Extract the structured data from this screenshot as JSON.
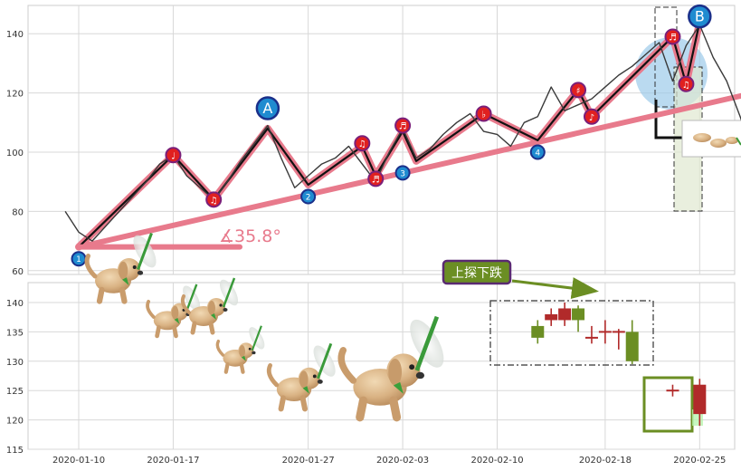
{
  "chart_data": [
    {
      "type": "line",
      "panel": "upper",
      "ylim": [
        57,
        150
      ],
      "yticks": [
        60,
        80,
        100,
        120,
        140
      ],
      "grid": true,
      "series": [
        {
          "role": "price",
          "color": "#3a3a3a",
          "points": [
            [
              "2020-01-09",
              80
            ],
            [
              "2020-01-10",
              73
            ],
            [
              "2020-01-11",
              70
            ],
            [
              "2020-01-12",
              75
            ],
            [
              "2020-01-13",
              80
            ],
            [
              "2020-01-14",
              85
            ],
            [
              "2020-01-15",
              90
            ],
            [
              "2020-01-16",
              96
            ],
            [
              "2020-01-17",
              99
            ],
            [
              "2020-01-18",
              92
            ],
            [
              "2020-01-19",
              88
            ],
            [
              "2020-01-20",
              84
            ],
            [
              "2020-01-21",
              90
            ],
            [
              "2020-01-22",
              97
            ],
            [
              "2020-01-23",
              103
            ],
            [
              "2020-01-24",
              109
            ],
            [
              "2020-01-25",
              98
            ],
            [
              "2020-01-26",
              88
            ],
            [
              "2020-01-27",
              92
            ],
            [
              "2020-01-28",
              96
            ],
            [
              "2020-01-29",
              98
            ],
            [
              "2020-01-30",
              102
            ],
            [
              "2020-01-31",
              96
            ],
            [
              "2020-02-01",
              90
            ],
            [
              "2020-02-02",
              100
            ],
            [
              "2020-02-03",
              108
            ],
            [
              "2020-02-04",
              98
            ],
            [
              "2020-02-05",
              101
            ],
            [
              "2020-02-06",
              106
            ],
            [
              "2020-02-07",
              110
            ],
            [
              "2020-02-08",
              113
            ],
            [
              "2020-02-09",
              107
            ],
            [
              "2020-02-10",
              106
            ],
            [
              "2020-02-11",
              102
            ],
            [
              "2020-02-12",
              110
            ],
            [
              "2020-02-13",
              112
            ],
            [
              "2020-02-14",
              122
            ],
            [
              "2020-02-15",
              114
            ],
            [
              "2020-02-16",
              116
            ],
            [
              "2020-02-17",
              118
            ],
            [
              "2020-02-18",
              122
            ],
            [
              "2020-02-19",
              126
            ],
            [
              "2020-02-20",
              129
            ],
            [
              "2020-02-21",
              133
            ],
            [
              "2020-02-22",
              137
            ],
            [
              "2020-02-23",
              124
            ],
            [
              "2020-02-24",
              136
            ],
            [
              "2020-02-25",
              143
            ],
            [
              "2020-02-26",
              132
            ],
            [
              "2020-02-27",
              124
            ],
            [
              "2020-02-28",
              112
            ],
            [
              "2020-02-29",
              99
            ],
            [
              "2020-03-01",
              94
            ]
          ]
        },
        {
          "role": "zigzag-wave",
          "color": "#e87a8c",
          "points": [
            [
              "2020-01-10",
              68
            ],
            [
              "2020-01-17",
              99
            ],
            [
              "2020-01-20",
              84
            ],
            [
              "2020-01-24",
              108
            ],
            [
              "2020-01-27",
              89
            ],
            [
              "2020-01-31",
              102
            ],
            [
              "2020-02-01",
              92
            ],
            [
              "2020-02-03",
              107
            ],
            [
              "2020-02-04",
              97
            ],
            [
              "2020-02-09",
              113
            ],
            [
              "2020-02-13",
              104
            ],
            [
              "2020-02-16",
              121
            ],
            [
              "2020-02-17",
              112
            ],
            [
              "2020-02-23",
              139
            ],
            [
              "2020-02-24",
              123
            ],
            [
              "2020-02-25",
              144
            ]
          ]
        }
      ],
      "trend_line": {
        "from": [
          "2020-01-10",
          68
        ],
        "to": [
          "2020-02-29",
          120
        ],
        "color": "#e87a8c"
      },
      "angle_annotation": {
        "text": "∡35.8°",
        "color": "#e87a8c"
      },
      "markers_red": [
        {
          "x": "2020-01-17",
          "y": 99,
          "glyph": "♩"
        },
        {
          "x": "2020-01-20",
          "y": 84,
          "glyph": "♫"
        },
        {
          "x": "2020-01-31",
          "y": 103,
          "glyph": "♫"
        },
        {
          "x": "2020-02-01",
          "y": 91,
          "glyph": "♬"
        },
        {
          "x": "2020-02-03",
          "y": 109,
          "glyph": "♬"
        },
        {
          "x": "2020-02-09",
          "y": 113,
          "glyph": "♭"
        },
        {
          "x": "2020-02-16",
          "y": 121,
          "glyph": "♯"
        },
        {
          "x": "2020-02-17",
          "y": 112,
          "glyph": "♪"
        },
        {
          "x": "2020-02-23",
          "y": 139,
          "glyph": "♬"
        },
        {
          "x": "2020-02-24",
          "y": 123,
          "glyph": "♫"
        }
      ],
      "markers_blue": [
        {
          "x": "2020-01-10",
          "y": 64,
          "label": "1"
        },
        {
          "x": "2020-01-27",
          "y": 85,
          "label": "2"
        },
        {
          "x": "2020-02-03",
          "y": 93,
          "label": "3"
        },
        {
          "x": "2020-02-13",
          "y": 100,
          "label": "4"
        }
      ],
      "big_labels": [
        {
          "x": "2020-01-24",
          "y": 113,
          "label": "A"
        },
        {
          "x": "2020-02-25",
          "y": 144,
          "label": "B"
        }
      ]
    },
    {
      "type": "candlestick",
      "panel": "lower",
      "ylim": [
        115,
        143
      ],
      "yticks": [
        115,
        120,
        125,
        130,
        135,
        140
      ],
      "grid": true,
      "xticks": [
        "2020-01-10",
        "2020-01-17",
        "2020-01-27",
        "2020-02-03",
        "2020-02-10",
        "2020-02-18",
        "2020-02-25"
      ],
      "annotation_text": "上探下跌",
      "candles": [
        {
          "x": "2020-02-13",
          "open": 136,
          "close": 134,
          "high": 137,
          "low": 133
        },
        {
          "x": "2020-02-14",
          "open": 137,
          "close": 138,
          "high": 139,
          "low": 136
        },
        {
          "x": "2020-02-15",
          "open": 137,
          "close": 139,
          "high": 140,
          "low": 136
        },
        {
          "x": "2020-02-16",
          "open": 139,
          "close": 137,
          "high": 139.5,
          "low": 135
        },
        {
          "x": "2020-02-17",
          "open": 134,
          "close": 134,
          "high": 136,
          "low": 133
        },
        {
          "x": "2020-02-18",
          "open": 135,
          "close": 135,
          "high": 137,
          "low": 133
        },
        {
          "x": "2020-02-19",
          "open": 135,
          "close": 135,
          "high": 135.5,
          "low": 132
        },
        {
          "x": "2020-02-20",
          "open": 135,
          "close": 130,
          "high": 137,
          "low": 129.5
        },
        {
          "x": "2020-02-23",
          "open": 125,
          "close": 125,
          "high": 126,
          "low": 124
        },
        {
          "x": "2020-02-25",
          "open": 121,
          "close": 126,
          "high": 127,
          "low": 119
        }
      ]
    }
  ],
  "colors": {
    "up": "#b12a2a",
    "down": "#6b8e23",
    "marker_red": "#e02020",
    "marker_ring": "#7a1f7a",
    "marker_blue": "#1f8bd0",
    "marker_blue_ring": "#1a2f8a",
    "grid": "#d8d8d8"
  }
}
